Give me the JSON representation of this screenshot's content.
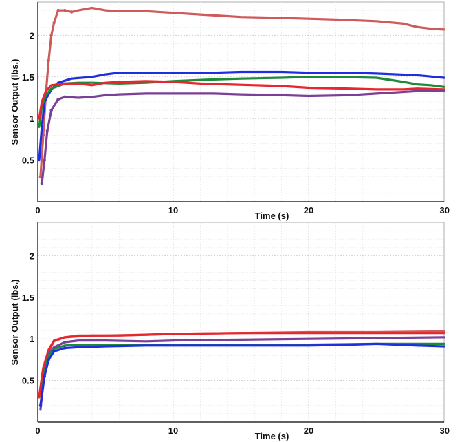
{
  "colors": {
    "red": "#e8262e",
    "blue": "#1f2ee0",
    "green": "#1f8a3a",
    "purple": "#7a3f96",
    "salmon": "#cf5a5a"
  },
  "chart_data": [
    {
      "type": "line",
      "xlabel": "Time (s)",
      "ylabel": "Sensor Output (lbs.)",
      "xlim": [
        0,
        30
      ],
      "ylim": [
        0,
        2.4
      ],
      "x_ticks": [
        "0",
        "10",
        "20",
        "30"
      ],
      "y_ticks": [
        "0.5",
        "1",
        "1.5",
        "2"
      ],
      "grid": true,
      "series": [
        {
          "color": "#cf5a5a",
          "marker": "dot",
          "points": [
            [
              0.2,
              0.3
            ],
            [
              0.4,
              0.8
            ],
            [
              0.6,
              1.3
            ],
            [
              0.8,
              1.7
            ],
            [
              1.0,
              2.0
            ],
            [
              1.2,
              2.15
            ],
            [
              1.5,
              2.3
            ],
            [
              2,
              2.3
            ],
            [
              2.5,
              2.28
            ],
            [
              3,
              2.3
            ],
            [
              4,
              2.33
            ],
            [
              5,
              2.3
            ],
            [
              6,
              2.29
            ],
            [
              8,
              2.29
            ],
            [
              10,
              2.27
            ],
            [
              12,
              2.25
            ],
            [
              15,
              2.22
            ],
            [
              18,
              2.21
            ],
            [
              20,
              2.2
            ],
            [
              22,
              2.19
            ],
            [
              25,
              2.17
            ],
            [
              27,
              2.14
            ],
            [
              28,
              2.1
            ],
            [
              29,
              2.08
            ],
            [
              30,
              2.07
            ]
          ]
        },
        {
          "color": "#1f2ee0",
          "points": [
            [
              0.1,
              0.5
            ],
            [
              0.3,
              0.9
            ],
            [
              0.5,
              1.2
            ],
            [
              1,
              1.35
            ],
            [
              1.5,
              1.43
            ],
            [
              2.5,
              1.48
            ],
            [
              4,
              1.5
            ],
            [
              5,
              1.53
            ],
            [
              6,
              1.55
            ],
            [
              8,
              1.55
            ],
            [
              10,
              1.55
            ],
            [
              13,
              1.55
            ],
            [
              15,
              1.56
            ],
            [
              18,
              1.56
            ],
            [
              20,
              1.55
            ],
            [
              23,
              1.55
            ],
            [
              25,
              1.54
            ],
            [
              28,
              1.52
            ],
            [
              30,
              1.49
            ]
          ]
        },
        {
          "color": "#1f8a3a",
          "points": [
            [
              0.1,
              0.9
            ],
            [
              0.3,
              1.15
            ],
            [
              0.6,
              1.28
            ],
            [
              1,
              1.36
            ],
            [
              2,
              1.42
            ],
            [
              3,
              1.43
            ],
            [
              4,
              1.43
            ],
            [
              6,
              1.42
            ],
            [
              8,
              1.43
            ],
            [
              10,
              1.45
            ],
            [
              13,
              1.47
            ],
            [
              15,
              1.48
            ],
            [
              18,
              1.49
            ],
            [
              20,
              1.5
            ],
            [
              22,
              1.5
            ],
            [
              25,
              1.49
            ],
            [
              27,
              1.44
            ],
            [
              28,
              1.41
            ],
            [
              29,
              1.4
            ],
            [
              30,
              1.38
            ]
          ]
        },
        {
          "color": "#e8262e",
          "points": [
            [
              0.1,
              1.0
            ],
            [
              0.3,
              1.2
            ],
            [
              0.6,
              1.33
            ],
            [
              1,
              1.4
            ],
            [
              2,
              1.42
            ],
            [
              3,
              1.42
            ],
            [
              4,
              1.4
            ],
            [
              5,
              1.43
            ],
            [
              6,
              1.44
            ],
            [
              8,
              1.45
            ],
            [
              10,
              1.44
            ],
            [
              12,
              1.42
            ],
            [
              14,
              1.41
            ],
            [
              16,
              1.4
            ],
            [
              18,
              1.39
            ],
            [
              20,
              1.37
            ],
            [
              23,
              1.36
            ],
            [
              25,
              1.35
            ],
            [
              27,
              1.35
            ],
            [
              28,
              1.36
            ],
            [
              30,
              1.35
            ]
          ]
        },
        {
          "color": "#7a3f96",
          "marker": "dot",
          "points": [
            [
              0.3,
              0.22
            ],
            [
              0.5,
              0.5
            ],
            [
              0.7,
              0.85
            ],
            [
              1,
              1.1
            ],
            [
              1.5,
              1.23
            ],
            [
              2,
              1.26
            ],
            [
              3,
              1.25
            ],
            [
              4,
              1.26
            ],
            [
              5,
              1.28
            ],
            [
              6,
              1.29
            ],
            [
              8,
              1.3
            ],
            [
              10,
              1.3
            ],
            [
              13,
              1.3
            ],
            [
              15,
              1.29
            ],
            [
              18,
              1.28
            ],
            [
              20,
              1.27
            ],
            [
              23,
              1.28
            ],
            [
              25,
              1.3
            ],
            [
              28,
              1.33
            ],
            [
              30,
              1.33
            ]
          ]
        }
      ]
    },
    {
      "type": "line",
      "xlabel": "Time (s)",
      "ylabel": "Sensor Output (lbs.)",
      "xlim": [
        0,
        30
      ],
      "ylim": [
        0,
        2.4
      ],
      "x_ticks": [
        "0",
        "10",
        "20",
        "30"
      ],
      "y_ticks": [
        "0.5",
        "1",
        "1.5",
        "2"
      ],
      "grid": true,
      "series": [
        {
          "color": "#cf5a5a",
          "points": [
            [
              0.1,
              0.3
            ],
            [
              0.4,
              0.65
            ],
            [
              0.8,
              0.85
            ],
            [
              1.2,
              0.97
            ],
            [
              2,
              1.02
            ],
            [
              3,
              1.04
            ],
            [
              5,
              1.04
            ],
            [
              8,
              1.05
            ],
            [
              10,
              1.06
            ],
            [
              15,
              1.07
            ],
            [
              20,
              1.08
            ],
            [
              25,
              1.08
            ],
            [
              30,
              1.09
            ]
          ]
        },
        {
          "color": "#e8262e",
          "points": [
            [
              0.1,
              0.3
            ],
            [
              0.4,
              0.65
            ],
            [
              0.8,
              0.87
            ],
            [
              1.2,
              0.98
            ],
            [
              2,
              1.02
            ],
            [
              3,
              1.03
            ],
            [
              4,
              1.04
            ],
            [
              6,
              1.04
            ],
            [
              8,
              1.05
            ],
            [
              10,
              1.06
            ],
            [
              15,
              1.07
            ],
            [
              20,
              1.07
            ],
            [
              25,
              1.07
            ],
            [
              30,
              1.07
            ]
          ]
        },
        {
          "color": "#7a3f96",
          "points": [
            [
              0.2,
              0.15
            ],
            [
              0.5,
              0.6
            ],
            [
              0.8,
              0.82
            ],
            [
              1.2,
              0.9
            ],
            [
              2,
              0.96
            ],
            [
              3,
              0.98
            ],
            [
              5,
              0.98
            ],
            [
              8,
              0.97
            ],
            [
              10,
              0.98
            ],
            [
              15,
              0.99
            ],
            [
              20,
              1.0
            ],
            [
              25,
              1.01
            ],
            [
              30,
              1.02
            ]
          ]
        },
        {
          "color": "#1f8a3a",
          "points": [
            [
              0.2,
              0.2
            ],
            [
              0.5,
              0.6
            ],
            [
              0.8,
              0.8
            ],
            [
              1.2,
              0.88
            ],
            [
              2,
              0.92
            ],
            [
              3,
              0.93
            ],
            [
              5,
              0.93
            ],
            [
              8,
              0.93
            ],
            [
              10,
              0.93
            ],
            [
              15,
              0.93
            ],
            [
              20,
              0.93
            ],
            [
              25,
              0.94
            ],
            [
              30,
              0.94
            ]
          ]
        },
        {
          "color": "#1f2ee0",
          "marker": "dot",
          "points": [
            [
              0.2,
              0.2
            ],
            [
              0.5,
              0.55
            ],
            [
              0.8,
              0.75
            ],
            [
              1.2,
              0.85
            ],
            [
              2,
              0.89
            ],
            [
              3,
              0.9
            ],
            [
              5,
              0.91
            ],
            [
              8,
              0.92
            ],
            [
              10,
              0.92
            ],
            [
              15,
              0.92
            ],
            [
              20,
              0.92
            ],
            [
              23,
              0.93
            ],
            [
              25,
              0.94
            ],
            [
              28,
              0.92
            ],
            [
              30,
              0.91
            ]
          ]
        }
      ]
    }
  ]
}
